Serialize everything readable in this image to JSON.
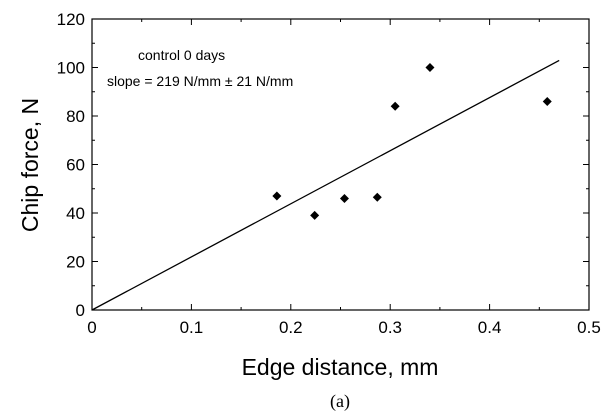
{
  "chart_data": {
    "type": "scatter",
    "xlabel": "Edge distance, mm",
    "ylabel": "Chip force, N",
    "xlim": [
      0,
      0.5
    ],
    "ylim": [
      0,
      120
    ],
    "xticks": [
      0,
      0.1,
      0.2,
      0.3,
      0.4,
      0.5
    ],
    "xtick_labels": [
      "0",
      "0.1",
      "0.2",
      "0.3",
      "0.4",
      "0.5"
    ],
    "yticks": [
      0,
      20,
      40,
      60,
      80,
      100,
      120
    ],
    "ytick_labels": [
      "0",
      "20",
      "40",
      "60",
      "80",
      "100",
      "120"
    ],
    "annotations": [
      "control   0 days",
      "slope = 219 N/mm ± 21 N/mm"
    ],
    "caption": "(a)",
    "points": [
      {
        "x": 0.186,
        "y": 47
      },
      {
        "x": 0.224,
        "y": 39
      },
      {
        "x": 0.254,
        "y": 46
      },
      {
        "x": 0.287,
        "y": 46.5
      },
      {
        "x": 0.305,
        "y": 84
      },
      {
        "x": 0.34,
        "y": 100
      },
      {
        "x": 0.458,
        "y": 86
      }
    ],
    "fit_line": {
      "slope": 219,
      "intercept": 0,
      "x_range": [
        0,
        0.47
      ]
    },
    "grid": false,
    "marker": "diamond",
    "colors": {
      "marker": "#000000",
      "line": "#000000",
      "axes": "#000000"
    }
  }
}
